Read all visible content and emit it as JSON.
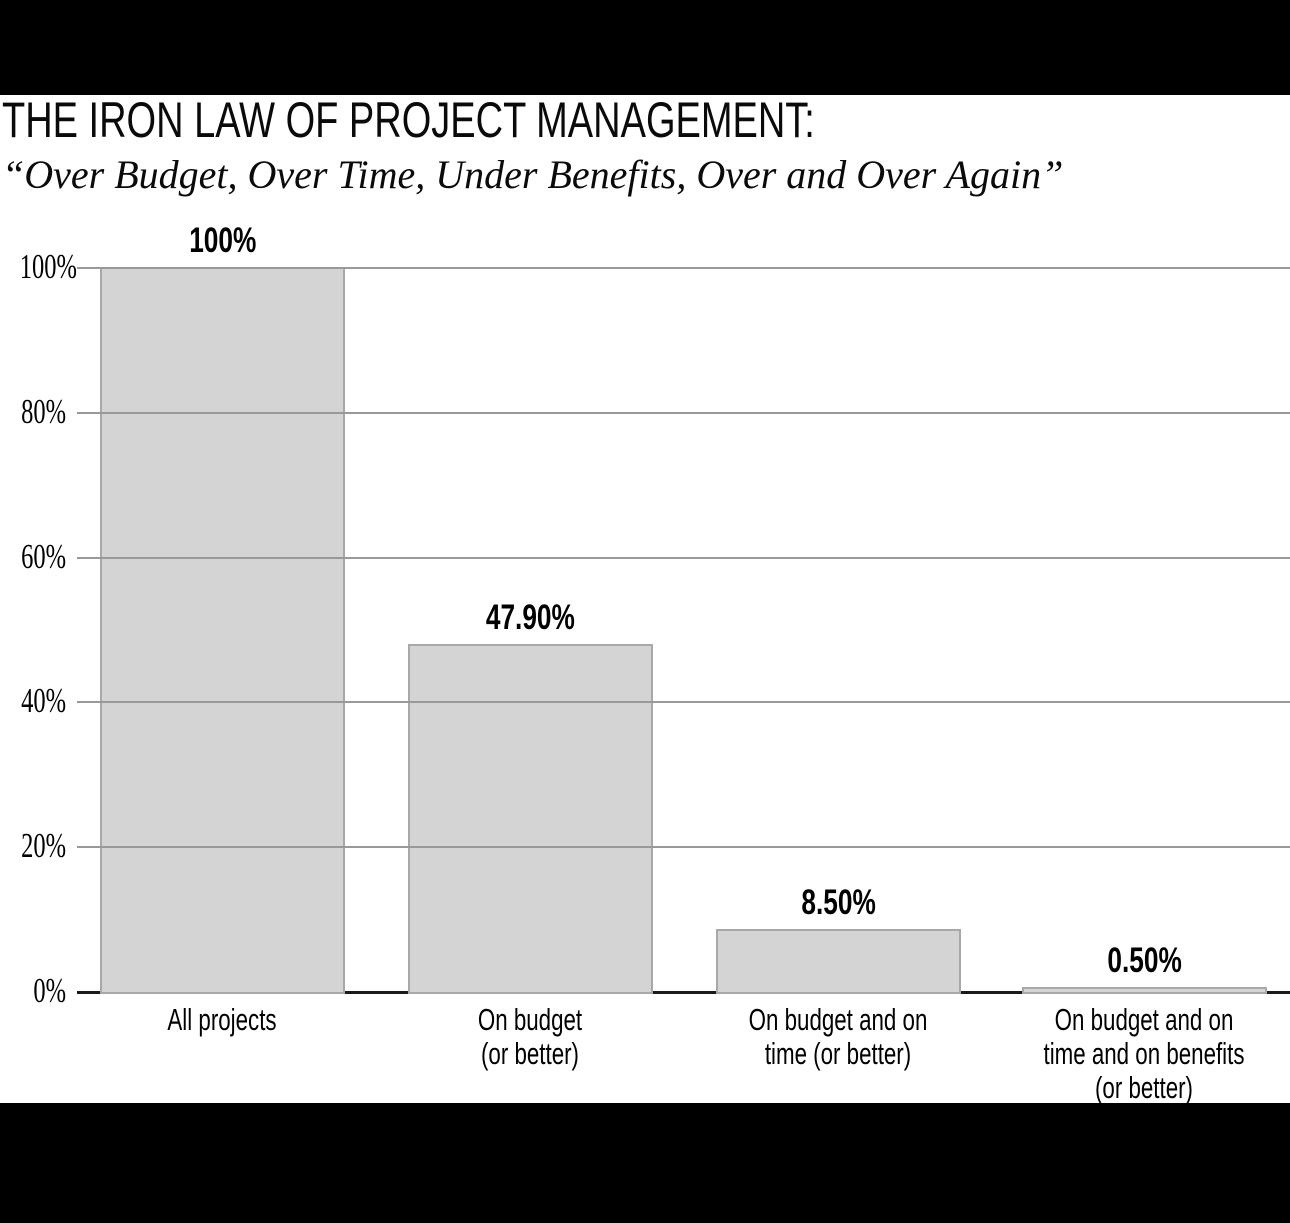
{
  "header": {
    "title": "THE IRON LAW OF PROJECT MANAGEMENT:",
    "subtitle": "“Over Budget, Over Time, Under Benefits, Over and Over Again”"
  },
  "chart_data": {
    "type": "bar",
    "title": "THE IRON LAW OF PROJECT MANAGEMENT:",
    "subtitle": "“Over Budget, Over Time, Under Benefits, Over and Over Again”",
    "categories": [
      "All projects",
      "On budget (or better)",
      "On budget and on time (or better)",
      "On budget and on time and on benefits (or better)"
    ],
    "category_lines": [
      [
        "All projects"
      ],
      [
        "On budget",
        "(or better)"
      ],
      [
        "On budget and on",
        "time (or better)"
      ],
      [
        "On budget and on",
        "time and on benefits",
        "(or better)"
      ]
    ],
    "values": [
      100,
      47.9,
      8.5,
      0.5
    ],
    "bar_labels": [
      "100%",
      "47.90%",
      "8.50%",
      "0.50%"
    ],
    "xlabel": "",
    "ylabel": "",
    "ylim": [
      0,
      100
    ],
    "grid": true,
    "legend": false,
    "yticks": [
      {
        "value": 0,
        "label": "0%"
      },
      {
        "value": 20,
        "label": "20%"
      },
      {
        "value": 40,
        "label": "40%"
      },
      {
        "value": 60,
        "label": "60%"
      },
      {
        "value": 80,
        "label": "80%"
      },
      {
        "value": 100,
        "label": "100%"
      }
    ],
    "colors": {
      "bar_fill": "#d4d4d4",
      "bar_border": "#a8a8a8",
      "gridline": "#999999",
      "axis": "#1a1a1a",
      "text": "#000000",
      "band": "#000000",
      "background": "#ffffff"
    }
  }
}
